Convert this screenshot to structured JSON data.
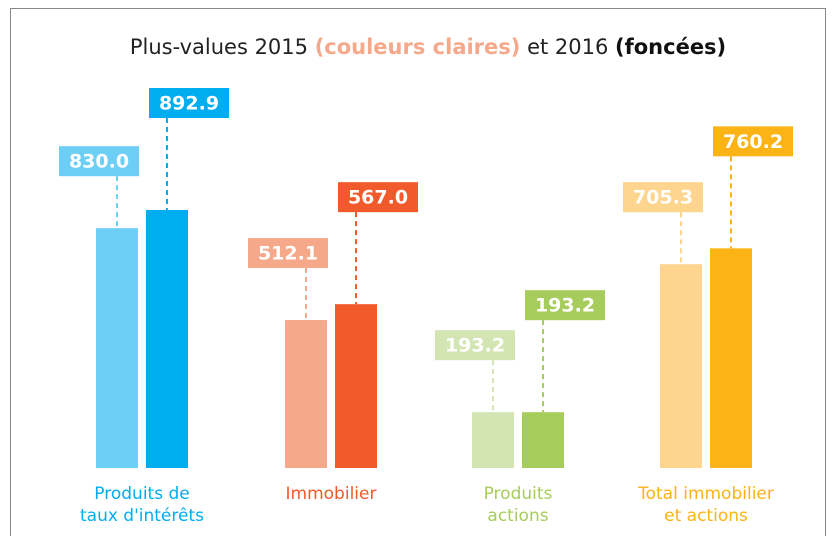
{
  "chart_data": {
    "type": "bar",
    "title": [
      "Plus-values 2015 ",
      "(couleurs claires)",
      " et 2016 ",
      "(foncées)"
    ],
    "categories": [
      [
        "Produits de",
        "taux d'intérêts"
      ],
      [
        "Immobilier"
      ],
      [
        "Produits",
        "actions"
      ],
      [
        "Total immobilier",
        "et actions"
      ]
    ],
    "category_colors": [
      "#00aeef",
      "#f15a2b",
      "#a6cd5b",
      "#fbb316"
    ],
    "series": [
      {
        "colors": [
          "#6dcff6",
          "#f5a98a",
          "#d3e5b3",
          "#fdd58e"
        ],
        "values": [
          830,
          512.1,
          193.2,
          705.3
        ],
        "value_labels": [
          "830.0",
          "512.1",
          "193.2",
          "705.3"
        ]
      },
      {
        "colors": [
          "#00aeef",
          "#f15a2b",
          "#a6cd5b",
          "#fbb316"
        ],
        "values": [
          892.9,
          567,
          193.2,
          760.2
        ],
        "value_labels": [
          "892.9",
          "567.0",
          "193.2",
          "760.2"
        ]
      }
    ]
  }
}
